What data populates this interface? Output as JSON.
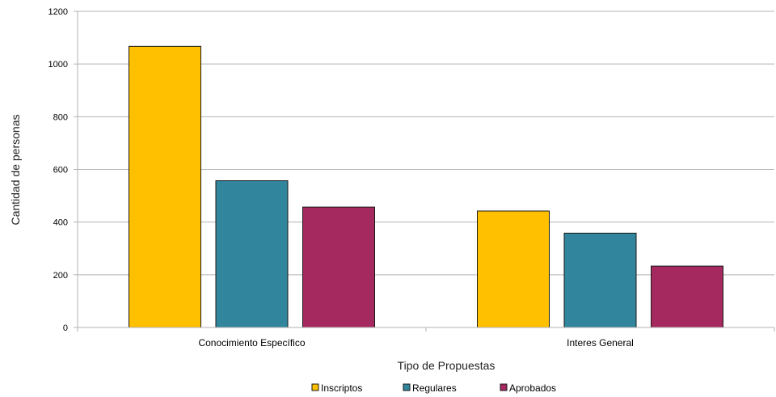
{
  "chart_data": {
    "type": "bar",
    "title": "",
    "xlabel": "Tipo de Propuestas",
    "ylabel": "Cantidad de personas",
    "ylim": [
      0,
      1200
    ],
    "yticks": [
      0,
      200,
      400,
      600,
      800,
      1000,
      1200
    ],
    "grid": true,
    "legend": "bottom",
    "categories": [
      "Conocimiento Específico",
      "Interes General"
    ],
    "series": [
      {
        "name": "Inscriptos",
        "color": "#FFC000",
        "values": [
          1067,
          442
        ]
      },
      {
        "name": "Regulares",
        "color": "#31859C",
        "values": [
          557,
          358
        ]
      },
      {
        "name": "Aprobados",
        "color": "#A5285E",
        "values": [
          457,
          233
        ]
      }
    ]
  }
}
